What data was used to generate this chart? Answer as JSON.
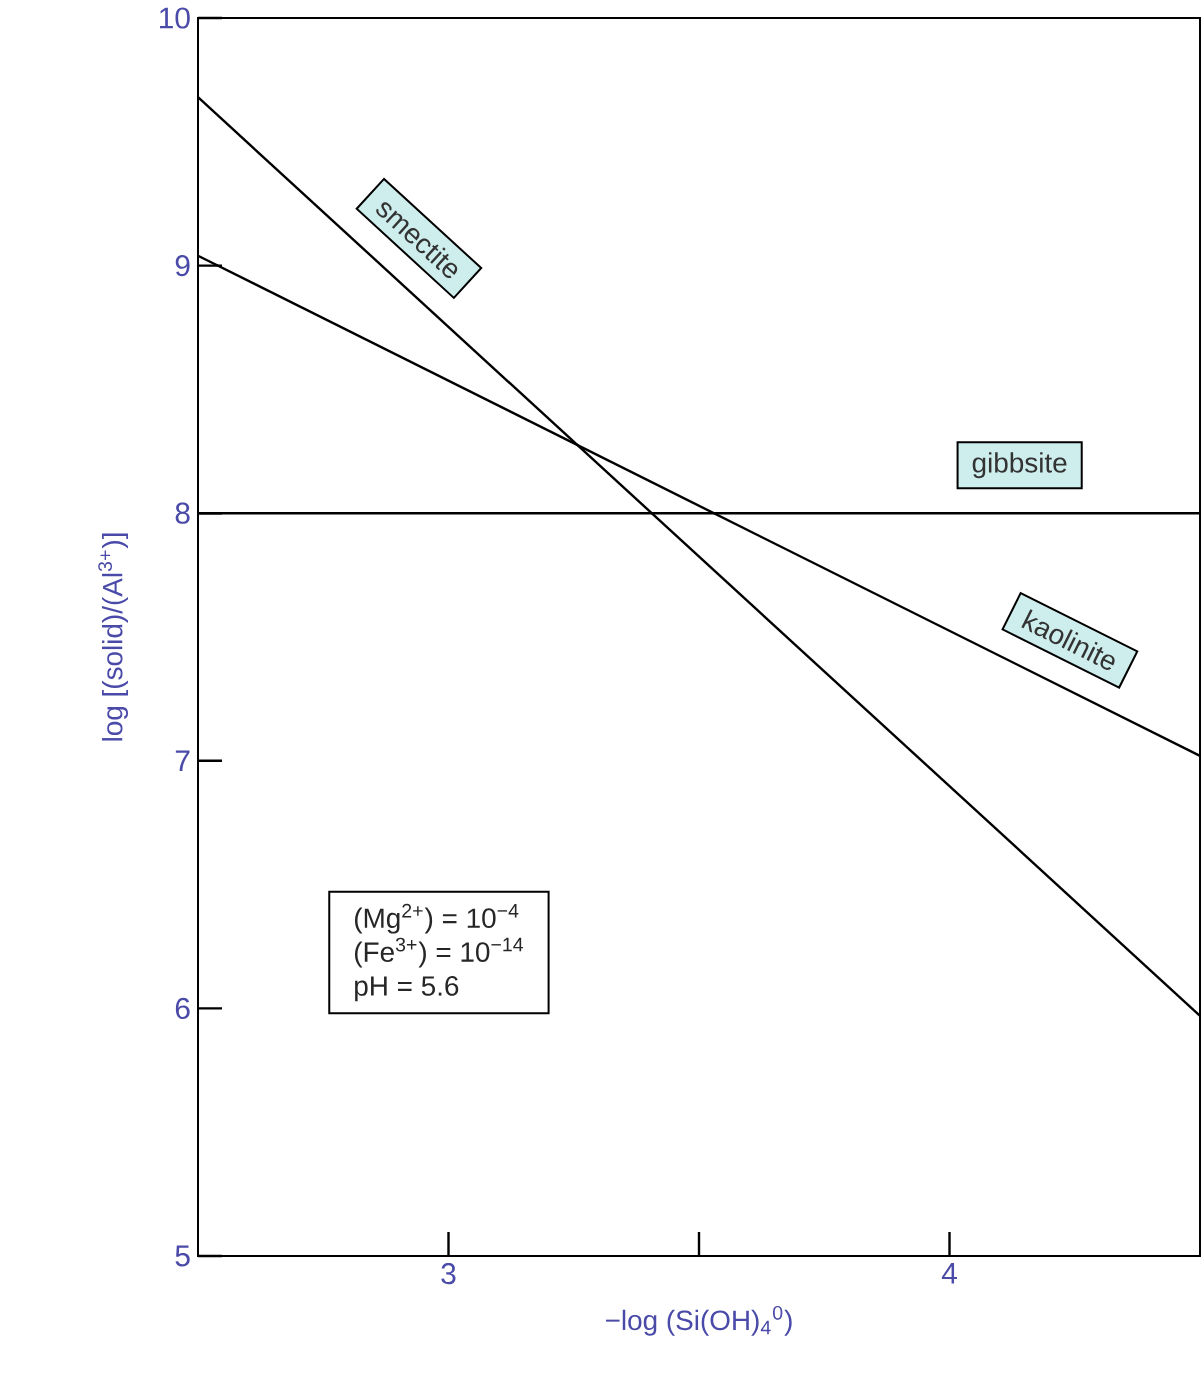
{
  "chart_data": {
    "type": "line",
    "xlabel": "−log (Si(OH)$_{4}$$^{0}$)",
    "ylabel": "log [(solid)/(Al$^{3+}$)]",
    "x": [
      2.5,
      4.5
    ],
    "series": [
      {
        "name": "smectite",
        "color": "#000000",
        "values": [
          9.68,
          5.97
        ]
      },
      {
        "name": "gibbsite",
        "color": "#000000",
        "values": [
          8.0,
          8.0
        ]
      },
      {
        "name": "kaolinite",
        "color": "#000000",
        "values": [
          9.04,
          7.02
        ]
      }
    ],
    "xlim": [
      2.5,
      4.5
    ],
    "ylim": [
      5,
      10
    ],
    "xticks": [
      3,
      {
        "value": 3.5,
        "label": null
      },
      4
    ],
    "yticks": [
      5,
      6,
      7,
      8,
      9,
      10
    ],
    "annotations": [
      "(Mg$^{2+}$) = 10$^{−4}$",
      "(Fe$^{3+}$) = 10$^{−14}$",
      "pH = 5.6"
    ],
    "grid": false,
    "legend": false,
    "marker": "none",
    "line_style": "solid"
  }
}
